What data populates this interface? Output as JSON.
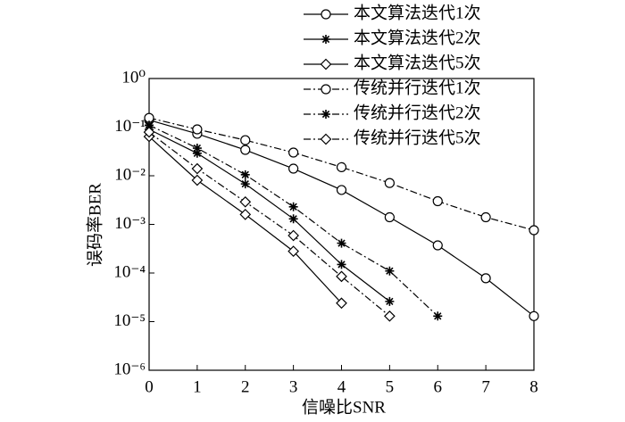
{
  "chart_data": {
    "type": "line",
    "xlabel": "信噪比SNR",
    "ylabel": "误码率BER",
    "x": [
      0,
      1,
      2,
      3,
      4,
      5,
      6,
      7,
      8
    ],
    "xlim": [
      0,
      8
    ],
    "xticks": [
      0,
      1,
      2,
      3,
      4,
      5,
      6,
      7,
      8
    ],
    "ylim": [
      1e-06,
      1
    ],
    "log_y": true,
    "yticks": [
      {
        "value": 1,
        "label": "10⁰"
      },
      {
        "value": 0.1,
        "label": "10⁻¹"
      },
      {
        "value": 0.01,
        "label": "10⁻²"
      },
      {
        "value": 0.001,
        "label": "10⁻³"
      },
      {
        "value": 0.0001,
        "label": "10⁻⁴"
      },
      {
        "value": 1e-05,
        "label": "10⁻⁵"
      },
      {
        "value": 1e-06,
        "label": "10⁻⁶"
      }
    ],
    "legend": "upper right",
    "series": [
      {
        "name": "本文算法迭代1次",
        "color": "#000000",
        "marker": "circle",
        "dash": "solid",
        "values": [
          0.14,
          0.073,
          0.034,
          0.014,
          0.0051,
          0.0014,
          0.00037,
          7.8e-05,
          1.3e-05
        ]
      },
      {
        "name": "本文算法迭代2次",
        "color": "#000000",
        "marker": "star",
        "dash": "solid",
        "values": [
          0.09,
          0.029,
          0.0068,
          0.0013,
          0.00015,
          2.6e-05,
          null,
          null,
          null
        ]
      },
      {
        "name": "本文算法迭代5次",
        "color": "#000000",
        "marker": "diamond",
        "dash": "solid",
        "values": [
          0.064,
          0.0081,
          0.0016,
          0.00028,
          2.4e-05,
          null,
          null,
          null,
          null
        ]
      },
      {
        "name": "传统并行迭代1次",
        "color": "#000000",
        "marker": "circle",
        "dash": "dashdot",
        "values": [
          0.155,
          0.09,
          0.054,
          0.03,
          0.015,
          0.0071,
          0.003,
          0.0014,
          0.00076
        ]
      },
      {
        "name": "传统并行迭代2次",
        "color": "#000000",
        "marker": "star",
        "dash": "dashdot",
        "values": [
          0.11,
          0.037,
          0.0105,
          0.0023,
          0.00041,
          0.00011,
          1.3e-05,
          null,
          null
        ]
      },
      {
        "name": "传统并行迭代5次",
        "color": "#000000",
        "marker": "diamond",
        "dash": "dashdot",
        "values": [
          0.079,
          0.014,
          0.0029,
          0.00059,
          8.5e-05,
          1.3e-05,
          null,
          null,
          null
        ]
      }
    ]
  }
}
